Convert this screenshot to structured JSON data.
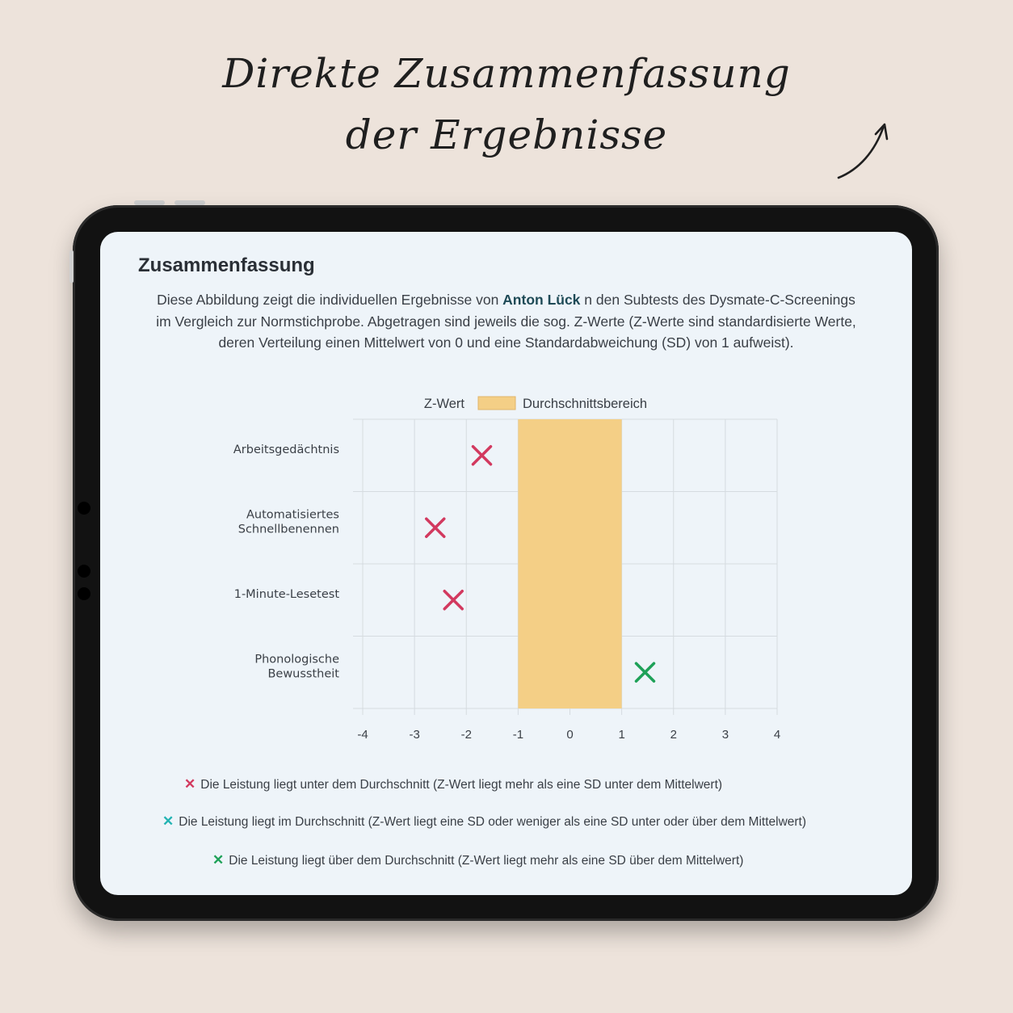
{
  "headline": {
    "line1": "Direkte Zusammenfassung",
    "line2": "der Ergebnisse"
  },
  "report": {
    "title": "Zusammenfassung",
    "desc_part1": "Diese Abbildung zeigt die individuellen Ergebnisse von ",
    "student_name": "Anton Lück",
    "desc_part2": " n den Subtests des Dysmate-C-Screenings",
    "desc_line2": "im Vergleich zur Normstichprobe. Abgetragen sind jeweils die sog. Z-Werte (Z-Werte sind standardisierte Werte,",
    "desc_line3": "deren Verteilung einen Mittelwert von 0 und eine Standardabweichung (SD) von 1 aufweist)."
  },
  "chart_data": {
    "type": "scatter",
    "orientation": "horizontal",
    "legend": [
      "Z-Wert",
      "Durchschnittsbereich"
    ],
    "legend_position": "top",
    "categories": [
      "Arbeitsgedächtnis",
      "Automatisiertes Schnellbenennen",
      "1-Minute-Lesetest",
      "Phonologische Bewusstheit"
    ],
    "category_lines": [
      [
        "Arbeitsgedächtnis"
      ],
      [
        "Automatisiertes",
        "Schnellbenennen"
      ],
      [
        "1-Minute-Lesetest"
      ],
      [
        "Phonologische",
        "Bewusstheit"
      ]
    ],
    "values": [
      -1.7,
      -2.6,
      -2.25,
      1.45
    ],
    "status": [
      "below",
      "below",
      "below",
      "above"
    ],
    "average_range": [
      -1,
      1
    ],
    "xlim": [
      -4,
      4
    ],
    "xticks": [
      "-4",
      "-3",
      "-2",
      "-1",
      "0",
      "1",
      "2",
      "3",
      "4"
    ],
    "grid": true
  },
  "legend_notes": [
    {
      "status": "below",
      "text": "Die Leistung liegt unter dem Durchschnitt (Z-Wert liegt mehr als eine SD unter dem Mittelwert)"
    },
    {
      "status": "average",
      "text": "Die Leistung liegt im Durchschnitt (Z-Wert liegt eine SD oder weniger als eine SD unter oder über dem Mittelwert)"
    },
    {
      "status": "above",
      "text": "Die Leistung liegt über dem Durchschnitt (Z-Wert liegt mehr als eine SD über dem Mittelwert)"
    }
  ],
  "colors": {
    "below": "#d2395f",
    "average": "#22b3b3",
    "above": "#1ea158",
    "average_band": "#f4cf86",
    "grid": "#d5dbe0"
  },
  "icons": {
    "marker": "cross-icon",
    "arrow": "arrow-up-right-icon"
  }
}
